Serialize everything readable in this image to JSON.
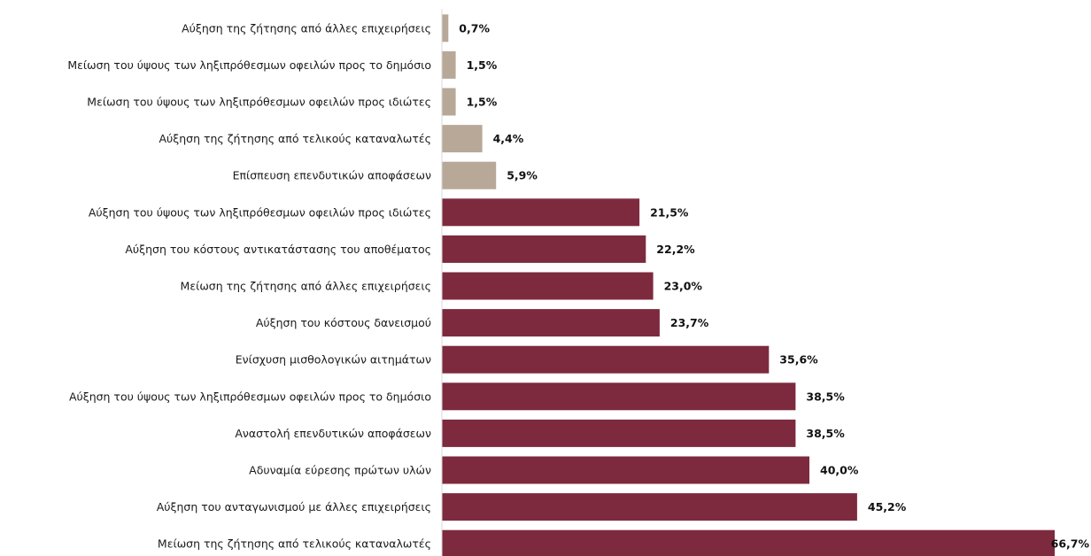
{
  "chart_data": {
    "type": "bar",
    "orientation": "horizontal",
    "grid": false,
    "legend": "none",
    "categories": [
      "Αύξηση της ζήτησης από άλλες επιχειρήσεις",
      "Μείωση του ύψους των ληξιπρόθεσμων οφειλών προς το δημόσιο",
      "Μείωση του ύψους των ληξιπρόθεσμων οφειλών προς ιδιώτες",
      "Αύξηση της ζήτησης από τελικούς καταναλωτές",
      "Επίσπευση επενδυτικών αποφάσεων",
      "Αύξηση του ύψους των ληξιπρόθεσμων οφειλών προς ιδιώτες",
      "Αύξηση του κόστους αντικατάστασης του αποθέματος",
      "Μείωση της ζήτησης από άλλες επιχειρήσεις",
      "Αύξηση του κόστους δανεισμού",
      "Ενίσχυση μισθολογικών αιτημάτων",
      "Αύξηση του ύψους των ληξιπρόθεσμων οφειλών προς το δημόσιο",
      "Αναστολή επενδυτικών αποφάσεων",
      "Αδυναμία εύρεσης πρώτων υλών",
      "Αύξηση του ανταγωνισμού με άλλες επιχειρήσεις",
      "Μείωση της ζήτησης από τελικούς καταναλωτές"
    ],
    "values": [
      0.7,
      1.5,
      1.5,
      4.4,
      5.9,
      21.5,
      22.2,
      23.0,
      23.7,
      35.6,
      38.5,
      38.5,
      40.0,
      45.2,
      66.7
    ],
    "value_labels": [
      "0,7%",
      "1,5%",
      "1,5%",
      "4,4%",
      "5,9%",
      "21,5%",
      "22,2%",
      "23,0%",
      "23,7%",
      "35,6%",
      "38,5%",
      "38,5%",
      "40,0%",
      "45,2%",
      "66,7%"
    ],
    "groups": [
      "positive",
      "positive",
      "positive",
      "positive",
      "positive",
      "negative",
      "negative",
      "negative",
      "negative",
      "negative",
      "negative",
      "negative",
      "negative",
      "negative",
      "negative"
    ],
    "xlim": [
      0,
      66.7
    ],
    "colors": {
      "positive": "#b8a898",
      "negative": "#7d2a3f",
      "axis": "#d9d9d9"
    }
  }
}
